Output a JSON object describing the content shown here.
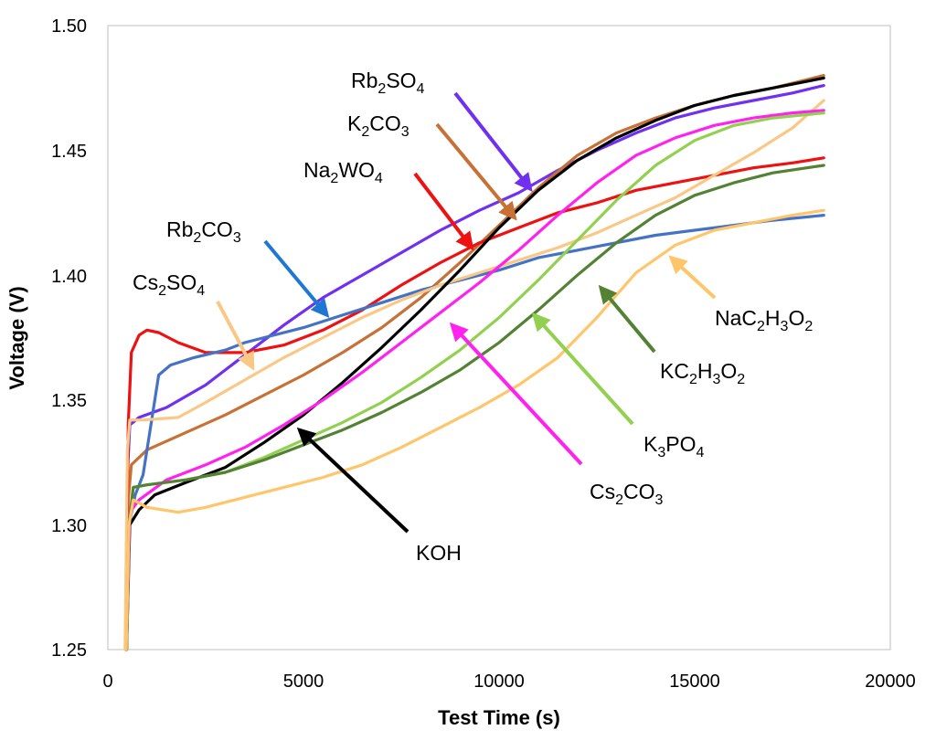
{
  "chart_data": {
    "type": "line",
    "title": "",
    "xlabel": "Test Time (s)",
    "ylabel": "Voltage (V)",
    "xlim": [
      0,
      20000
    ],
    "ylim": [
      1.25,
      1.5
    ],
    "x_ticks": [
      "0",
      "5000",
      "10000",
      "15000",
      "20000"
    ],
    "y_ticks": [
      "1.25",
      "1.30",
      "1.35",
      "1.40",
      "1.45",
      "1.50"
    ],
    "grid": false,
    "series": [
      {
        "name": "Rb2SO4",
        "color": "#7030f0",
        "points": [
          [
            450,
            1.25
          ],
          [
            500,
            1.32
          ],
          [
            560,
            1.34
          ],
          [
            800,
            1.343
          ],
          [
            1500,
            1.347
          ],
          [
            2500,
            1.356
          ],
          [
            3500,
            1.368
          ],
          [
            4500,
            1.38
          ],
          [
            5500,
            1.391
          ],
          [
            6500,
            1.4
          ],
          [
            7500,
            1.409
          ],
          [
            8500,
            1.418
          ],
          [
            9500,
            1.426
          ],
          [
            10500,
            1.433
          ],
          [
            11500,
            1.442
          ],
          [
            12500,
            1.45
          ],
          [
            13500,
            1.457
          ],
          [
            14500,
            1.463
          ],
          [
            15500,
            1.467
          ],
          [
            16500,
            1.47
          ],
          [
            17500,
            1.473
          ],
          [
            18300,
            1.476
          ]
        ]
      },
      {
        "name": "K2CO3",
        "color": "#c87137",
        "points": [
          [
            450,
            1.25
          ],
          [
            520,
            1.31
          ],
          [
            600,
            1.324
          ],
          [
            1000,
            1.33
          ],
          [
            2000,
            1.337
          ],
          [
            3000,
            1.344
          ],
          [
            4000,
            1.352
          ],
          [
            5000,
            1.36
          ],
          [
            6000,
            1.369
          ],
          [
            7000,
            1.379
          ],
          [
            8000,
            1.391
          ],
          [
            9000,
            1.405
          ],
          [
            10000,
            1.42
          ],
          [
            11000,
            1.435
          ],
          [
            12000,
            1.448
          ],
          [
            13000,
            1.457
          ],
          [
            14000,
            1.463
          ],
          [
            15000,
            1.468
          ],
          [
            16000,
            1.472
          ],
          [
            17000,
            1.475
          ],
          [
            18300,
            1.48
          ]
        ]
      },
      {
        "name": "Na2WO4",
        "color": "#ee1111",
        "points": [
          [
            460,
            1.25
          ],
          [
            520,
            1.34
          ],
          [
            600,
            1.369
          ],
          [
            800,
            1.376
          ],
          [
            1000,
            1.378
          ],
          [
            1300,
            1.377
          ],
          [
            1800,
            1.373
          ],
          [
            2500,
            1.369
          ],
          [
            3500,
            1.369
          ],
          [
            4500,
            1.372
          ],
          [
            5500,
            1.378
          ],
          [
            6500,
            1.386
          ],
          [
            7500,
            1.396
          ],
          [
            8500,
            1.405
          ],
          [
            9500,
            1.413
          ],
          [
            10500,
            1.419
          ],
          [
            11500,
            1.425
          ],
          [
            12500,
            1.429
          ],
          [
            13500,
            1.434
          ],
          [
            14500,
            1.437
          ],
          [
            15500,
            1.44
          ],
          [
            16500,
            1.443
          ],
          [
            17500,
            1.445
          ],
          [
            18300,
            1.447
          ]
        ]
      },
      {
        "name": "Rb2CO3",
        "color": "#4472c4",
        "points": [
          [
            480,
            1.25
          ],
          [
            540,
            1.3
          ],
          [
            700,
            1.312
          ],
          [
            900,
            1.32
          ],
          [
            1100,
            1.34
          ],
          [
            1300,
            1.36
          ],
          [
            1600,
            1.364
          ],
          [
            2200,
            1.367
          ],
          [
            3000,
            1.37
          ],
          [
            3500,
            1.373
          ],
          [
            4000,
            1.375
          ],
          [
            5000,
            1.379
          ],
          [
            6000,
            1.384
          ],
          [
            7000,
            1.389
          ],
          [
            8000,
            1.394
          ],
          [
            9000,
            1.398
          ],
          [
            10000,
            1.402
          ],
          [
            11000,
            1.407
          ],
          [
            12000,
            1.41
          ],
          [
            13000,
            1.413
          ],
          [
            14000,
            1.416
          ],
          [
            15000,
            1.418
          ],
          [
            16000,
            1.42
          ],
          [
            17000,
            1.422
          ],
          [
            18300,
            1.424
          ]
        ]
      },
      {
        "name": "Cs2SO4",
        "color": "#fac886",
        "points": [
          [
            440,
            1.25
          ],
          [
            500,
            1.33
          ],
          [
            560,
            1.342
          ],
          [
            900,
            1.342
          ],
          [
            1800,
            1.343
          ],
          [
            2500,
            1.349
          ],
          [
            3500,
            1.358
          ],
          [
            4500,
            1.367
          ],
          [
            5500,
            1.375
          ],
          [
            6500,
            1.383
          ],
          [
            7500,
            1.39
          ],
          [
            8500,
            1.396
          ],
          [
            9500,
            1.401
          ],
          [
            10500,
            1.406
          ],
          [
            11500,
            1.411
          ],
          [
            12500,
            1.417
          ],
          [
            13500,
            1.424
          ],
          [
            14500,
            1.431
          ],
          [
            15500,
            1.44
          ],
          [
            16500,
            1.449
          ],
          [
            17500,
            1.459
          ],
          [
            18300,
            1.47
          ]
        ]
      },
      {
        "name": "KOH",
        "color": "#000000",
        "points": [
          [
            480,
            1.25
          ],
          [
            560,
            1.3
          ],
          [
            800,
            1.306
          ],
          [
            1200,
            1.312
          ],
          [
            2000,
            1.317
          ],
          [
            3000,
            1.323
          ],
          [
            4000,
            1.333
          ],
          [
            5000,
            1.344
          ],
          [
            6000,
            1.357
          ],
          [
            7000,
            1.371
          ],
          [
            8000,
            1.386
          ],
          [
            9000,
            1.402
          ],
          [
            10000,
            1.419
          ],
          [
            11000,
            1.434
          ],
          [
            12000,
            1.446
          ],
          [
            13000,
            1.455
          ],
          [
            14000,
            1.462
          ],
          [
            15000,
            1.468
          ],
          [
            16000,
            1.472
          ],
          [
            17000,
            1.475
          ],
          [
            18300,
            1.479
          ]
        ]
      },
      {
        "name": "Cs2CO3",
        "color": "#ff22ee",
        "points": [
          [
            480,
            1.25
          ],
          [
            560,
            1.305
          ],
          [
            800,
            1.31
          ],
          [
            1500,
            1.318
          ],
          [
            2500,
            1.324
          ],
          [
            3500,
            1.331
          ],
          [
            4500,
            1.34
          ],
          [
            5500,
            1.35
          ],
          [
            6500,
            1.361
          ],
          [
            7500,
            1.373
          ],
          [
            8500,
            1.385
          ],
          [
            9500,
            1.397
          ],
          [
            10500,
            1.41
          ],
          [
            11500,
            1.424
          ],
          [
            12500,
            1.437
          ],
          [
            13500,
            1.448
          ],
          [
            14500,
            1.455
          ],
          [
            15500,
            1.46
          ],
          [
            16500,
            1.463
          ],
          [
            17500,
            1.465
          ],
          [
            18300,
            1.466
          ]
        ]
      },
      {
        "name": "K3PO4",
        "color": "#92d050",
        "points": [
          [
            480,
            1.25
          ],
          [
            540,
            1.3
          ],
          [
            650,
            1.315
          ],
          [
            1000,
            1.316
          ],
          [
            2000,
            1.318
          ],
          [
            3000,
            1.321
          ],
          [
            4000,
            1.327
          ],
          [
            5000,
            1.334
          ],
          [
            6000,
            1.341
          ],
          [
            7000,
            1.349
          ],
          [
            8000,
            1.359
          ],
          [
            9000,
            1.37
          ],
          [
            10000,
            1.383
          ],
          [
            11000,
            1.398
          ],
          [
            12000,
            1.414
          ],
          [
            13000,
            1.43
          ],
          [
            14000,
            1.444
          ],
          [
            15000,
            1.454
          ],
          [
            16000,
            1.46
          ],
          [
            17000,
            1.463
          ],
          [
            18300,
            1.465
          ]
        ]
      },
      {
        "name": "KC2H3O2",
        "color": "#548235",
        "points": [
          [
            480,
            1.25
          ],
          [
            540,
            1.3
          ],
          [
            650,
            1.315
          ],
          [
            1000,
            1.316
          ],
          [
            2000,
            1.318
          ],
          [
            3000,
            1.321
          ],
          [
            4000,
            1.326
          ],
          [
            5000,
            1.332
          ],
          [
            6000,
            1.338
          ],
          [
            7000,
            1.345
          ],
          [
            8000,
            1.353
          ],
          [
            9000,
            1.362
          ],
          [
            10000,
            1.373
          ],
          [
            11000,
            1.386
          ],
          [
            12000,
            1.4
          ],
          [
            13000,
            1.413
          ],
          [
            14000,
            1.424
          ],
          [
            15000,
            1.432
          ],
          [
            16000,
            1.437
          ],
          [
            17000,
            1.441
          ],
          [
            18300,
            1.444
          ]
        ]
      },
      {
        "name": "NaC2H3O2",
        "color": "#ffc56a",
        "points": [
          [
            470,
            1.25
          ],
          [
            540,
            1.3
          ],
          [
            650,
            1.31
          ],
          [
            1000,
            1.307
          ],
          [
            1800,
            1.305
          ],
          [
            2500,
            1.307
          ],
          [
            3500,
            1.311
          ],
          [
            4500,
            1.315
          ],
          [
            5500,
            1.319
          ],
          [
            6500,
            1.324
          ],
          [
            7500,
            1.331
          ],
          [
            8500,
            1.339
          ],
          [
            9500,
            1.347
          ],
          [
            10500,
            1.356
          ],
          [
            11500,
            1.367
          ],
          [
            12500,
            1.383
          ],
          [
            13500,
            1.401
          ],
          [
            14500,
            1.412
          ],
          [
            15500,
            1.418
          ],
          [
            16500,
            1.421
          ],
          [
            17500,
            1.424
          ],
          [
            18300,
            1.426
          ]
        ]
      }
    ],
    "annotations": [
      {
        "label": [
          "Rb",
          "2",
          "SO",
          "4"
        ],
        "color": "#7030f0",
        "arrow_to": [
          10800,
          1.4345
        ]
      },
      {
        "label": [
          "K",
          "2",
          "CO",
          "3"
        ],
        "color": "#c87137",
        "arrow_to": [
          10400,
          1.423
        ]
      },
      {
        "label": [
          "Na",
          "2",
          "WO",
          "4"
        ],
        "color": "#ee1111",
        "arrow_to": [
          9300,
          1.411
        ]
      },
      {
        "label": [
          "Rb",
          "2",
          "CO",
          "3"
        ],
        "color": "#1f77d4",
        "arrow_to": [
          5600,
          1.384
        ]
      },
      {
        "label": [
          "Cs",
          "2",
          "SO",
          "4"
        ],
        "color": "#fac886",
        "arrow_to": [
          3700,
          1.363
        ]
      },
      {
        "label": [
          "KOH"
        ],
        "color": "#000000",
        "arrow_to": [
          4900,
          1.338
        ]
      },
      {
        "label": [
          "Cs",
          "2",
          "CO",
          "3"
        ],
        "color": "#ff22ee",
        "arrow_to": [
          8800,
          1.38
        ]
      },
      {
        "label": [
          "K",
          "3",
          "PO",
          "4"
        ],
        "color": "#92d050",
        "arrow_to": [
          10900,
          1.384
        ]
      },
      {
        "label": [
          "KC",
          "2",
          "H",
          "3",
          "O",
          "2"
        ],
        "color": "#548235",
        "arrow_to": [
          12600,
          1.395
        ]
      },
      {
        "label": [
          "NaC",
          "2",
          "H",
          "3",
          "O",
          "2"
        ],
        "color": "#ffc56a",
        "arrow_to": [
          14400,
          1.407
        ]
      }
    ]
  }
}
